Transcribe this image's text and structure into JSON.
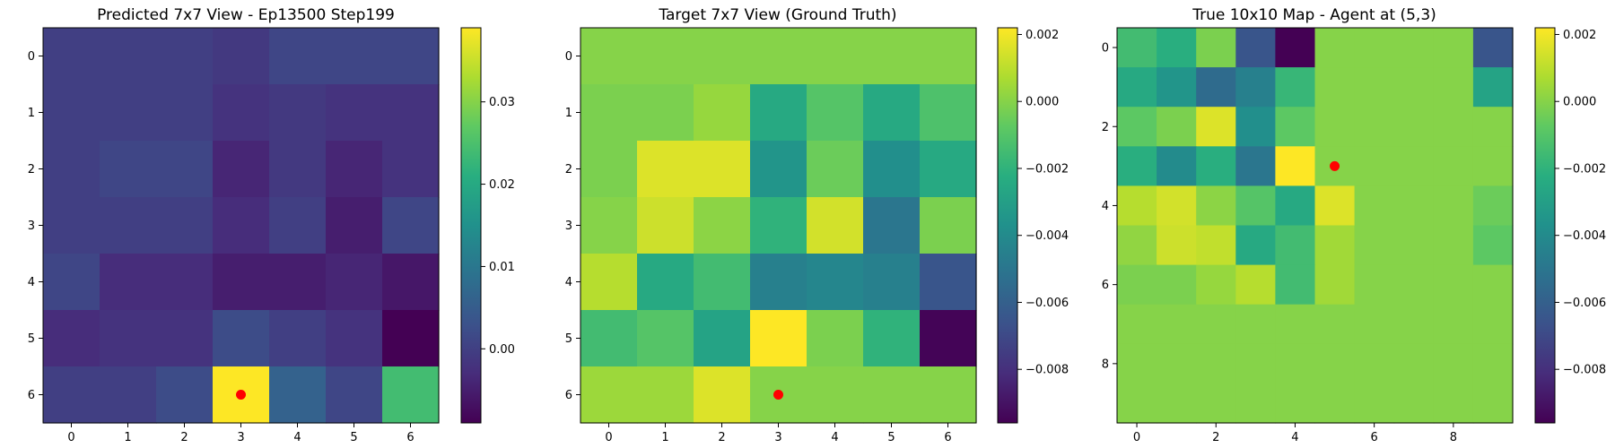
{
  "chart_data": [
    {
      "type": "heatmap",
      "title": "Predicted 7x7 View - Ep13500 Step199",
      "rows": 7,
      "cols": 7,
      "values": [
        [
          0.0,
          0.0,
          0.0,
          -0.001,
          0.001,
          0.001,
          0.001
        ],
        [
          0.0,
          0.0,
          0.0,
          -0.002,
          -0.001,
          -0.002,
          -0.002
        ],
        [
          0.0,
          0.001,
          0.001,
          -0.004,
          -0.001,
          -0.004,
          -0.002
        ],
        [
          0.0,
          0.0,
          0.0,
          -0.003,
          0.0,
          -0.005,
          0.001
        ],
        [
          0.001,
          -0.003,
          -0.003,
          -0.005,
          -0.005,
          -0.004,
          -0.006
        ],
        [
          -0.003,
          -0.002,
          -0.002,
          0.002,
          0.0,
          -0.002,
          -0.009
        ],
        [
          0.0,
          0.0,
          0.002,
          0.039,
          0.006,
          0.001,
          0.024
        ]
      ],
      "vmin": -0.009,
      "vmax": 0.039,
      "xticks": [
        "0",
        "1",
        "2",
        "3",
        "4",
        "5",
        "6"
      ],
      "yticks": [
        "0",
        "1",
        "2",
        "3",
        "4",
        "5",
        "6"
      ],
      "colorbar_ticks": [
        "0.00",
        "0.01",
        "0.02",
        "0.03"
      ],
      "colorbar_tick_values": [
        0.0,
        0.01,
        0.02,
        0.03
      ],
      "marker": {
        "x": 3,
        "y": 6,
        "color": "#ff0000"
      },
      "colormap": "viridis"
    },
    {
      "type": "heatmap",
      "title": "Target 7x7 View (Ground Truth)",
      "rows": 7,
      "cols": 7,
      "values": [
        [
          0.0,
          0.0,
          0.0,
          0.0,
          0.0,
          0.0,
          0.0
        ],
        [
          -0.0002,
          -0.0002,
          0.0003,
          -0.0025,
          -0.001,
          -0.0025,
          -0.0012
        ],
        [
          -0.0002,
          0.0016,
          0.0016,
          -0.0035,
          -0.0005,
          -0.0038,
          -0.0025
        ],
        [
          0.0,
          0.0013,
          0.0001,
          -0.002,
          0.0014,
          -0.005,
          -0.0002
        ],
        [
          0.0009,
          -0.0025,
          -0.0015,
          -0.0045,
          -0.0042,
          -0.0045,
          -0.0065
        ],
        [
          -0.0015,
          -0.001,
          -0.0028,
          0.0022,
          -0.0002,
          -0.002,
          -0.0095
        ],
        [
          0.0004,
          0.0004,
          0.0016,
          0.0,
          0.0,
          0.0,
          0.0
        ]
      ],
      "vmin": -0.0096,
      "vmax": 0.0022,
      "xticks": [
        "0",
        "1",
        "2",
        "3",
        "4",
        "5",
        "6"
      ],
      "yticks": [
        "0",
        "1",
        "2",
        "3",
        "4",
        "5",
        "6"
      ],
      "colorbar_ticks": [
        "0.002",
        "0.000",
        "−0.002",
        "−0.004",
        "−0.006",
        "−0.008"
      ],
      "colorbar_tick_values": [
        0.002,
        0.0,
        -0.002,
        -0.004,
        -0.006,
        -0.008
      ],
      "marker": {
        "x": 3,
        "y": 6,
        "color": "#ff0000"
      },
      "colormap": "viridis"
    },
    {
      "type": "heatmap",
      "title": "True 10x10 Map - Agent at (5,3)",
      "rows": 10,
      "cols": 10,
      "values": [
        [
          -0.0015,
          -0.0022,
          -0.0002,
          -0.0065,
          -0.0096,
          0.0,
          0.0,
          0.0,
          0.0,
          -0.0065
        ],
        [
          -0.0025,
          -0.0035,
          -0.0055,
          -0.0045,
          -0.0018,
          0.0,
          0.0,
          0.0,
          0.0,
          -0.0028
        ],
        [
          -0.0008,
          -0.0002,
          0.0016,
          -0.0038,
          -0.0008,
          0.0,
          0.0,
          0.0,
          0.0,
          0.0
        ],
        [
          -0.0022,
          -0.004,
          -0.0022,
          -0.005,
          0.0022,
          0.0,
          0.0,
          0.0,
          0.0,
          0.0
        ],
        [
          0.0009,
          0.0014,
          0.0001,
          -0.001,
          -0.0025,
          0.0016,
          0.0,
          0.0,
          0.0,
          -0.0005
        ],
        [
          0.0002,
          0.0013,
          0.0011,
          -0.0025,
          -0.0015,
          0.0005,
          0.0,
          0.0,
          0.0,
          -0.0008
        ],
        [
          -0.0002,
          -0.0002,
          0.0003,
          0.0009,
          -0.0015,
          0.0005,
          0.0,
          0.0,
          0.0,
          0.0
        ],
        [
          0.0,
          0.0,
          0.0,
          0.0,
          0.0,
          0.0,
          0.0,
          0.0,
          0.0,
          0.0
        ],
        [
          0.0,
          0.0,
          0.0,
          0.0,
          0.0,
          0.0,
          0.0,
          0.0,
          0.0,
          0.0
        ],
        [
          0.0,
          0.0,
          0.0,
          0.0,
          0.0,
          0.0,
          0.0,
          0.0,
          0.0,
          0.0
        ]
      ],
      "vmin": -0.0096,
      "vmax": 0.0022,
      "xticks": [
        "0",
        "2",
        "4",
        "6",
        "8"
      ],
      "yticks": [
        "0",
        "2",
        "4",
        "6",
        "8"
      ],
      "colorbar_ticks": [
        "0.002",
        "0.000",
        "−0.002",
        "−0.004",
        "−0.006",
        "−0.008"
      ],
      "colorbar_tick_values": [
        0.002,
        0.0,
        -0.002,
        -0.004,
        -0.006,
        -0.008
      ],
      "marker": {
        "x": 5,
        "y": 3,
        "color": "#ff0000"
      },
      "colormap": "viridis"
    }
  ]
}
